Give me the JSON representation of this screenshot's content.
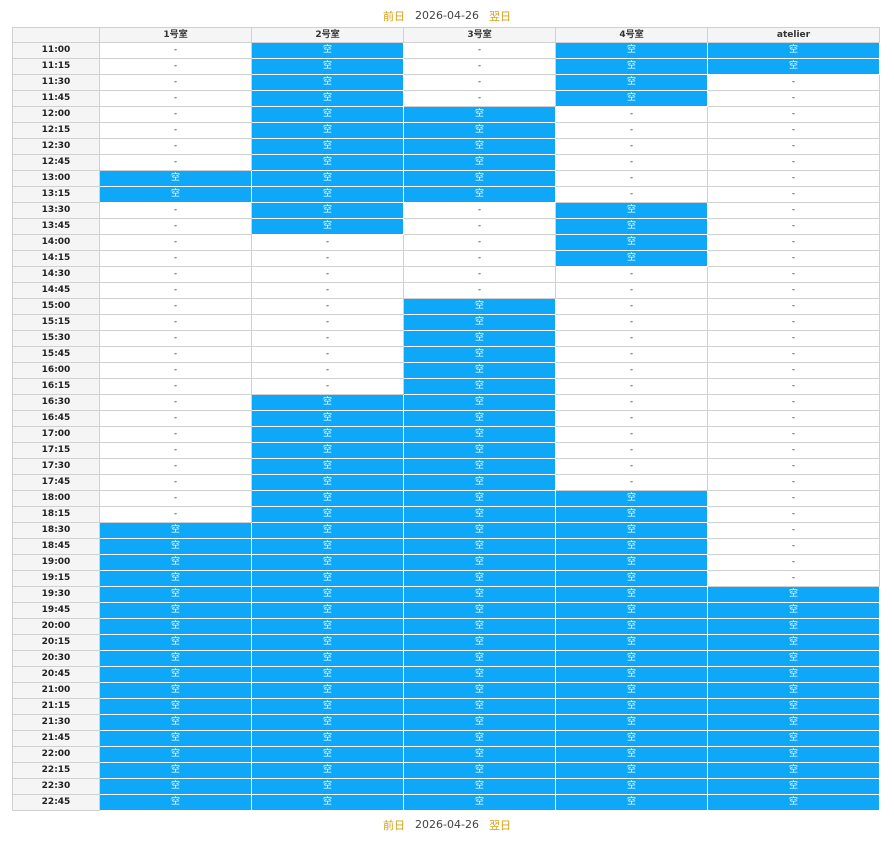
{
  "nav": {
    "prev_label": "前日",
    "date": "2026-04-26",
    "next_label": "翌日"
  },
  "table": {
    "columns": [
      "",
      "1号室",
      "2号室",
      "3号室",
      "4号室",
      "atelier"
    ],
    "free_label": "空",
    "busy_label": "-",
    "rows": [
      {
        "time": "11:00",
        "slots": [
          0,
          1,
          0,
          1,
          1
        ]
      },
      {
        "time": "11:15",
        "slots": [
          0,
          1,
          0,
          1,
          1
        ]
      },
      {
        "time": "11:30",
        "slots": [
          0,
          1,
          0,
          1,
          0
        ]
      },
      {
        "time": "11:45",
        "slots": [
          0,
          1,
          0,
          1,
          0
        ]
      },
      {
        "time": "12:00",
        "slots": [
          0,
          1,
          1,
          0,
          0
        ]
      },
      {
        "time": "12:15",
        "slots": [
          0,
          1,
          1,
          0,
          0
        ]
      },
      {
        "time": "12:30",
        "slots": [
          0,
          1,
          1,
          0,
          0
        ]
      },
      {
        "time": "12:45",
        "slots": [
          0,
          1,
          1,
          0,
          0
        ]
      },
      {
        "time": "13:00",
        "slots": [
          1,
          1,
          1,
          0,
          0
        ]
      },
      {
        "time": "13:15",
        "slots": [
          1,
          1,
          1,
          0,
          0
        ]
      },
      {
        "time": "13:30",
        "slots": [
          0,
          1,
          0,
          1,
          0
        ]
      },
      {
        "time": "13:45",
        "slots": [
          0,
          1,
          0,
          1,
          0
        ]
      },
      {
        "time": "14:00",
        "slots": [
          0,
          0,
          0,
          1,
          0
        ]
      },
      {
        "time": "14:15",
        "slots": [
          0,
          0,
          0,
          1,
          0
        ]
      },
      {
        "time": "14:30",
        "slots": [
          0,
          0,
          0,
          0,
          0
        ]
      },
      {
        "time": "14:45",
        "slots": [
          0,
          0,
          0,
          0,
          0
        ]
      },
      {
        "time": "15:00",
        "slots": [
          0,
          0,
          1,
          0,
          0
        ]
      },
      {
        "time": "15:15",
        "slots": [
          0,
          0,
          1,
          0,
          0
        ]
      },
      {
        "time": "15:30",
        "slots": [
          0,
          0,
          1,
          0,
          0
        ]
      },
      {
        "time": "15:45",
        "slots": [
          0,
          0,
          1,
          0,
          0
        ]
      },
      {
        "time": "16:00",
        "slots": [
          0,
          0,
          1,
          0,
          0
        ]
      },
      {
        "time": "16:15",
        "slots": [
          0,
          0,
          1,
          0,
          0
        ]
      },
      {
        "time": "16:30",
        "slots": [
          0,
          1,
          1,
          0,
          0
        ]
      },
      {
        "time": "16:45",
        "slots": [
          0,
          1,
          1,
          0,
          0
        ]
      },
      {
        "time": "17:00",
        "slots": [
          0,
          1,
          1,
          0,
          0
        ]
      },
      {
        "time": "17:15",
        "slots": [
          0,
          1,
          1,
          0,
          0
        ]
      },
      {
        "time": "17:30",
        "slots": [
          0,
          1,
          1,
          0,
          0
        ]
      },
      {
        "time": "17:45",
        "slots": [
          0,
          1,
          1,
          0,
          0
        ]
      },
      {
        "time": "18:00",
        "slots": [
          0,
          1,
          1,
          1,
          0
        ]
      },
      {
        "time": "18:15",
        "slots": [
          0,
          1,
          1,
          1,
          0
        ]
      },
      {
        "time": "18:30",
        "slots": [
          1,
          1,
          1,
          1,
          0
        ]
      },
      {
        "time": "18:45",
        "slots": [
          1,
          1,
          1,
          1,
          0
        ]
      },
      {
        "time": "19:00",
        "slots": [
          1,
          1,
          1,
          1,
          0
        ]
      },
      {
        "time": "19:15",
        "slots": [
          1,
          1,
          1,
          1,
          0
        ]
      },
      {
        "time": "19:30",
        "slots": [
          1,
          1,
          1,
          1,
          1
        ]
      },
      {
        "time": "19:45",
        "slots": [
          1,
          1,
          1,
          1,
          1
        ]
      },
      {
        "time": "20:00",
        "slots": [
          1,
          1,
          1,
          1,
          1
        ]
      },
      {
        "time": "20:15",
        "slots": [
          1,
          1,
          1,
          1,
          1
        ]
      },
      {
        "time": "20:30",
        "slots": [
          1,
          1,
          1,
          1,
          1
        ]
      },
      {
        "time": "20:45",
        "slots": [
          1,
          1,
          1,
          1,
          1
        ]
      },
      {
        "time": "21:00",
        "slots": [
          1,
          1,
          1,
          1,
          1
        ]
      },
      {
        "time": "21:15",
        "slots": [
          1,
          1,
          1,
          1,
          1
        ]
      },
      {
        "time": "21:30",
        "slots": [
          1,
          1,
          1,
          1,
          1
        ]
      },
      {
        "time": "21:45",
        "slots": [
          1,
          1,
          1,
          1,
          1
        ]
      },
      {
        "time": "22:00",
        "slots": [
          1,
          1,
          1,
          1,
          1
        ]
      },
      {
        "time": "22:15",
        "slots": [
          1,
          1,
          1,
          1,
          1
        ]
      },
      {
        "time": "22:30",
        "slots": [
          1,
          1,
          1,
          1,
          1
        ]
      },
      {
        "time": "22:45",
        "slots": [
          1,
          1,
          1,
          1,
          1
        ]
      }
    ]
  },
  "colors": {
    "free": "#0fa8f8",
    "nav_link": "#d4a017",
    "header_bg": "#f5f5f5"
  }
}
